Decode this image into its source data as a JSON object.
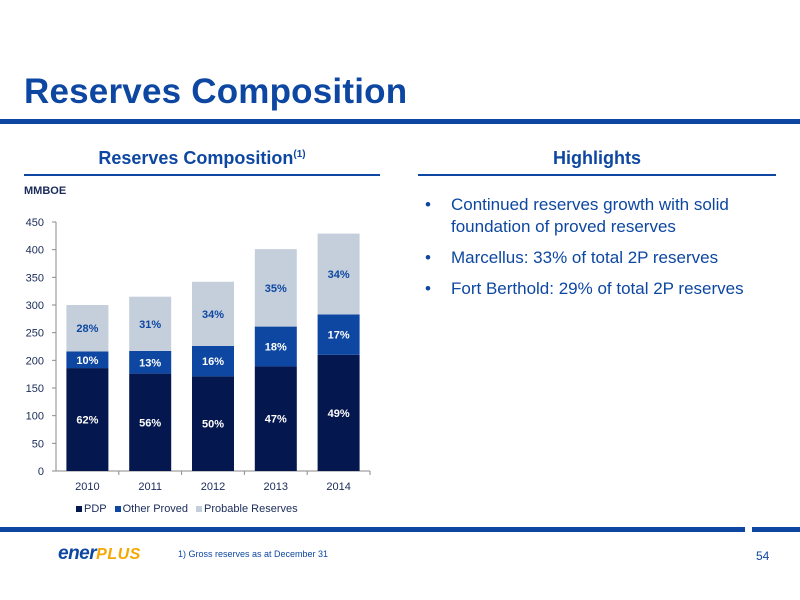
{
  "slide": {
    "title": "Reserves Composition"
  },
  "left_section": {
    "heading": "Reserves Composition",
    "heading_sup": "(1)",
    "unit": "MMBOE"
  },
  "right_section": {
    "heading": "Highlights",
    "bullets": [
      "Continued reserves growth with solid foundation of proved reserves",
      "Marcellus: 33% of total 2P reserves",
      "Fort Berthold: 29% of total 2P reserves"
    ]
  },
  "footer": {
    "logo_part1": "ener",
    "logo_part2": "PLUS",
    "footnote": "1)   Gross reserves as at December 31",
    "page_number": "54"
  },
  "colors": {
    "accent": "#0d47a1",
    "logo_accent": "#f5a800"
  },
  "chart_data": {
    "type": "bar",
    "stacked": true,
    "categories": [
      "2010",
      "2011",
      "2012",
      "2013",
      "2014"
    ],
    "series": [
      {
        "name": "PDP",
        "color": "#05174f",
        "values": [
          186,
          176,
          171,
          189,
          210
        ],
        "labels": [
          "62%",
          "56%",
          "50%",
          "47%",
          "49%"
        ]
      },
      {
        "name": "Other Proved",
        "color": "#0d47a1",
        "values": [
          30,
          41,
          55,
          72,
          73
        ],
        "labels": [
          "10%",
          "13%",
          "16%",
          "18%",
          "17%"
        ]
      },
      {
        "name": "Probable Reserves",
        "color": "#c5cfdc",
        "values": [
          84,
          98,
          116,
          140,
          146
        ],
        "labels": [
          "28%",
          "31%",
          "34%",
          "35%",
          "34%"
        ]
      }
    ],
    "ylim": [
      0,
      450
    ],
    "yticks": [
      "0",
      "50",
      "100",
      "150",
      "200",
      "250",
      "300",
      "350",
      "400",
      "450"
    ],
    "ylabel": "MMBOE",
    "legend": "bottom"
  }
}
